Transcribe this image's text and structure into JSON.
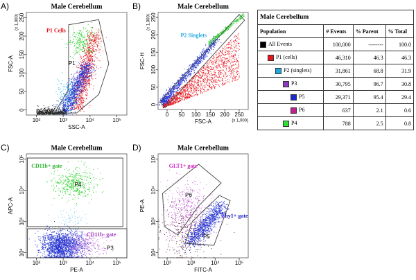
{
  "panels": [
    {
      "letter": "A)",
      "title": "Male Cerebellum",
      "x_label": "SSC-A",
      "y_label": "FSC-A",
      "y_multiplier": "(x 1,000)",
      "x_ticks": [
        "10²",
        "10³",
        "10⁴",
        "10⁵"
      ],
      "y_ticks": [
        "0",
        "50",
        "100",
        "150",
        "200",
        "250"
      ],
      "gates": [
        {
          "label": "P1 Cells",
          "color": "#e8141c"
        },
        {
          "label": "P1",
          "color": "#000000"
        }
      ]
    },
    {
      "letter": "B)",
      "title": "Male Cerebellum",
      "x_label": "FSC-A",
      "y_label": "FSC-H",
      "x_multiplier": "(x 1,000)",
      "y_multiplier": "(x 1,000)",
      "x_ticks": [
        "0",
        "50",
        "100",
        "150",
        "200",
        "250"
      ],
      "y_ticks": [
        "0",
        "50",
        "100",
        "150",
        "200",
        "250"
      ],
      "gates": [
        {
          "label": "P2 Singlets",
          "color": "#1fa8e0"
        }
      ]
    },
    {
      "letter": "C)",
      "title": "Male Cerebellum",
      "x_label": "PE-A",
      "y_label": "APC-A",
      "x_ticks": [
        "10²",
        "10³",
        "10⁴",
        "10⁵"
      ],
      "y_ticks": [
        "10²",
        "10³",
        "10⁴",
        "10⁵"
      ],
      "gates": [
        {
          "label": "CD11b+ gate",
          "color": "#2fb52f"
        },
        {
          "label": "P4",
          "color": "#000000"
        },
        {
          "label": "CD11b- gate",
          "color": "#a040c0"
        },
        {
          "label": "P3",
          "color": "#000000"
        }
      ]
    },
    {
      "letter": "D)",
      "title": "Male Cerebellum",
      "x_label": "FITC-A",
      "y_label": "PE-A",
      "x_ticks": [
        "10²",
        "10³",
        "10⁴",
        "10⁵"
      ],
      "y_ticks": [
        "10²",
        "10³",
        "10⁴",
        "10⁵"
      ],
      "gates": [
        {
          "label": "GLT1+ gate",
          "color": "#d020c0"
        },
        {
          "label": "P6",
          "color": "#000000"
        },
        {
          "label": "Thy1+ gate",
          "color": "#2020c8"
        },
        {
          "label": "P5",
          "color": "#000000"
        }
      ]
    }
  ],
  "table": {
    "title": "Male Cerebellum",
    "headers": [
      "Population",
      "# Events",
      "% Parent",
      "% Total"
    ],
    "rows": [
      {
        "name": "All Events",
        "color": "#000000",
        "cells": [
          "100,000",
          "--------",
          "100.0"
        ]
      },
      {
        "name": "P1 (cells)",
        "color": "#e8141c",
        "cells": [
          "46,310",
          "46.3",
          "46.3"
        ]
      },
      {
        "name": "P2 (singlets)",
        "color": "#1fa8e0",
        "cells": [
          "31,861",
          "68.8",
          "31.9"
        ]
      },
      {
        "name": "P3",
        "color": "#8a3cc0",
        "cells": [
          "30,795",
          "96.7",
          "30.8"
        ]
      },
      {
        "name": "P5",
        "color": "#1a2ad0",
        "cells": [
          "29,371",
          "95.4",
          "29.4"
        ]
      },
      {
        "name": "P6",
        "color": "#c0208f",
        "cells": [
          "637",
          "2.1",
          "0.6"
        ]
      },
      {
        "name": "P4",
        "color": "#30e030",
        "cells": [
          "788",
          "2.5",
          "0.8"
        ]
      }
    ]
  }
}
